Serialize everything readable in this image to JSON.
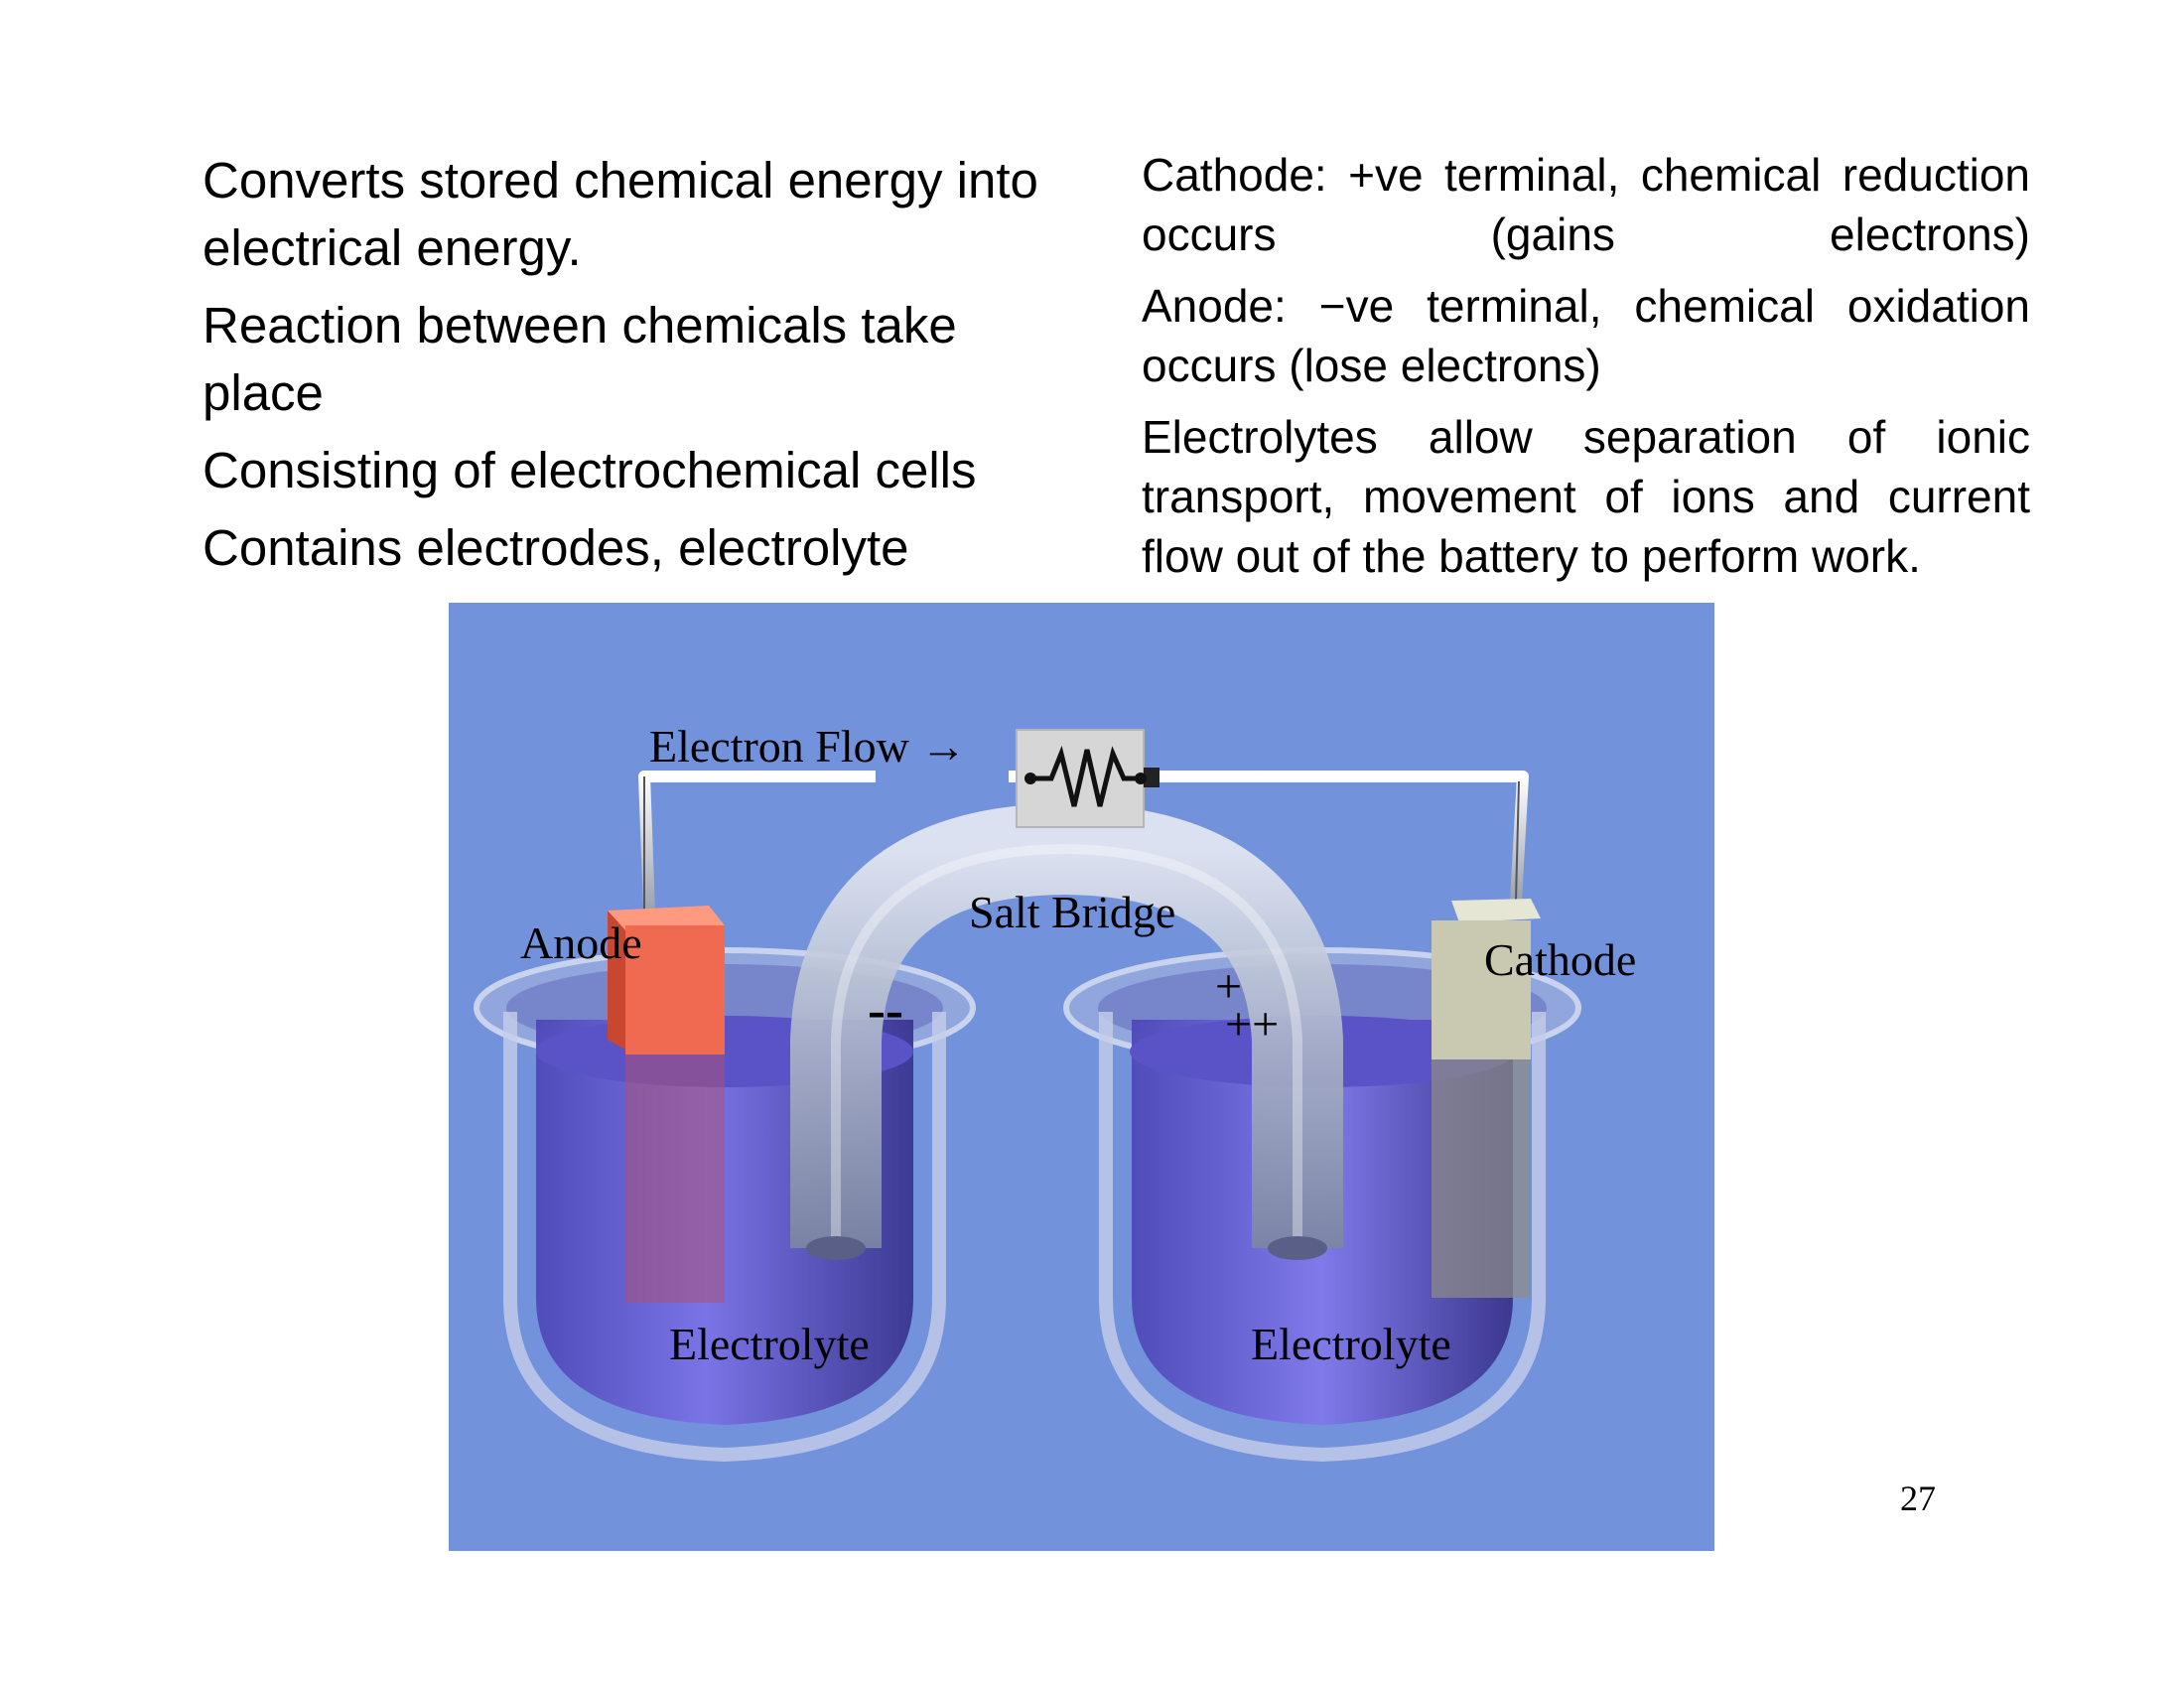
{
  "left_points": [
    "Converts stored chemical energy into electrical energy.",
    "Reaction between chemicals take place",
    "Consisting of electrochemical cells",
    "Contains electrodes, electrolyte"
  ],
  "right_points": [
    "Cathode: +ve terminal, chemical reduction occurs (gains electrons)",
    "Anode: −ve terminal, chemical oxidation occurs (lose electrons)",
    "Electrolytes allow separation of ionic transport, movement of ions and current flow out of the battery to perform work."
  ],
  "diagram": {
    "electron_flow": "Electron Flow →",
    "salt_bridge": "Salt Bridge",
    "anode": "Anode",
    "cathode": "Cathode",
    "electrolyte_left": "Electrolyte",
    "electrolyte_right": "Electrolyte",
    "minus_ions": "--",
    "plus_ion_top": "+",
    "plus_ions_bottom": "++"
  },
  "colors": {
    "background": "#7292dc",
    "electrolyte": "#6a64d8",
    "anode": "#f06a52",
    "cathode": "#c8c9b0"
  },
  "page_number": "27"
}
